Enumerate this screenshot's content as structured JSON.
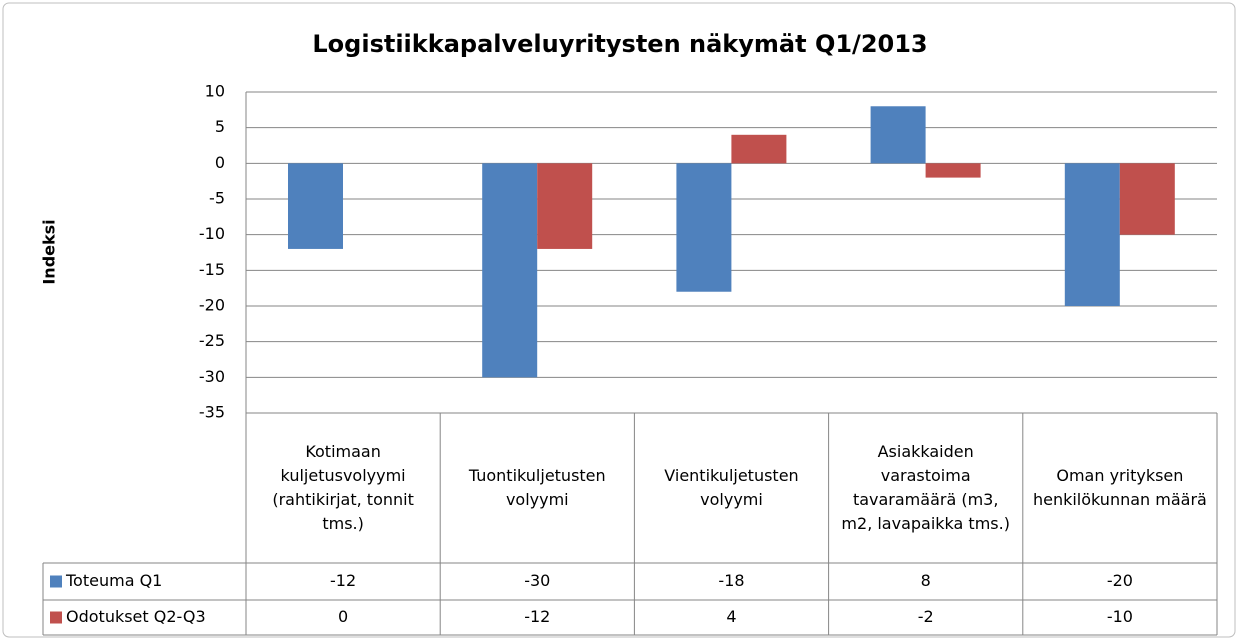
{
  "chart_data": {
    "type": "bar",
    "title": "Logistiikkapalveluyritysten näkymät Q1/2013",
    "y_label": "Indeksi",
    "categories": [
      "Kotimaan kuljetusvolyymi (rahtikirjat, tonnit tms.)",
      "Tuontikuljetusten volyymi",
      "Vientikuljetusten volyymi",
      "Asiakkaiden varastoima tavaramäärä (m3, m2, lavapaikka tms.)",
      "Oman yrityksen henkilökunnan määrä"
    ],
    "series": [
      {
        "name": "Toteuma Q1",
        "color": "#4f81bd",
        "values": [
          -12,
          -30,
          -18,
          8,
          -20
        ]
      },
      {
        "name": "Odotukset Q2-Q3",
        "color": "#c0504d",
        "values": [
          0,
          -12,
          4,
          -2,
          -10
        ]
      }
    ],
    "ylim": [
      -35,
      10
    ],
    "yticks": [
      10,
      5,
      0,
      -5,
      -10,
      -15,
      -20,
      -25,
      -30,
      -35
    ],
    "grid": true,
    "data_table": true
  }
}
